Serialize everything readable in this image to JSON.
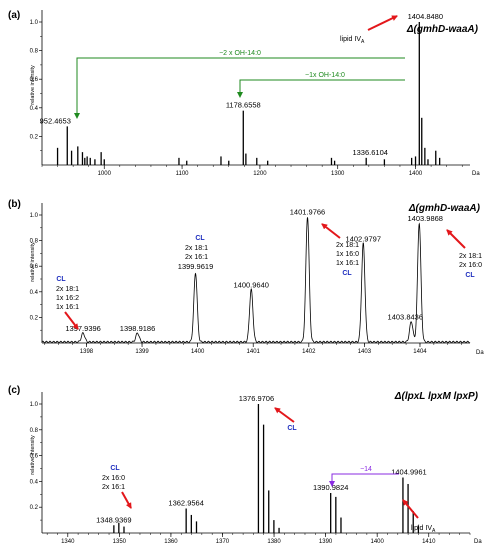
{
  "chart_data": [
    {
      "panel": "(a)",
      "type": "bar",
      "title": "Δ(gmhD-waaA)",
      "ylabel": "relative intensity",
      "xunit": "Da",
      "xlim": [
        920,
        1470
      ],
      "ylim": [
        0,
        1.0
      ],
      "xticks": [
        "1000",
        "1100",
        "1200",
        "1300",
        "1400"
      ],
      "yticks": [
        "0.2",
        "0.4",
        "0.6",
        "0.8",
        "1.0"
      ],
      "peaks": [
        {
          "x": 940,
          "y": 0.12
        },
        {
          "x": 952.4653,
          "y": 0.27,
          "label": "952.4653"
        },
        {
          "x": 958,
          "y": 0.1
        },
        {
          "x": 966,
          "y": 0.13
        },
        {
          "x": 972,
          "y": 0.09
        },
        {
          "x": 975,
          "y": 0.05
        },
        {
          "x": 978,
          "y": 0.06
        },
        {
          "x": 982,
          "y": 0.05
        },
        {
          "x": 988,
          "y": 0.04
        },
        {
          "x": 996,
          "y": 0.09
        },
        {
          "x": 1000,
          "y": 0.04
        },
        {
          "x": 1096,
          "y": 0.05
        },
        {
          "x": 1106,
          "y": 0.03
        },
        {
          "x": 1150,
          "y": 0.06
        },
        {
          "x": 1160,
          "y": 0.03
        },
        {
          "x": 1178.6558,
          "y": 0.38,
          "label": "1178.6558"
        },
        {
          "x": 1182,
          "y": 0.08
        },
        {
          "x": 1196,
          "y": 0.05
        },
        {
          "x": 1210,
          "y": 0.03
        },
        {
          "x": 1292,
          "y": 0.05
        },
        {
          "x": 1296,
          "y": 0.03
        },
        {
          "x": 1336.6104,
          "y": 0.05,
          "label": "1336.6104"
        },
        {
          "x": 1360,
          "y": 0.04
        },
        {
          "x": 1395,
          "y": 0.05
        },
        {
          "x": 1400,
          "y": 0.06
        },
        {
          "x": 1404.848,
          "y": 1.0,
          "label": "1404.8480"
        },
        {
          "x": 1408,
          "y": 0.33
        },
        {
          "x": 1412,
          "y": 0.12
        },
        {
          "x": 1416,
          "y": 0.04
        },
        {
          "x": 1426,
          "y": 0.1
        },
        {
          "x": 1431,
          "y": 0.05
        }
      ],
      "annotations": {
        "shift2": "−2 x OH-14:0",
        "shift1": "−1x OH-14:0",
        "lipid_main": "lipid IV",
        "lipid_sub": "A"
      }
    },
    {
      "panel": "(b)",
      "type": "line",
      "title": "Δ(gmhD-waaA)",
      "ylabel": "relative intensity",
      "xunit": "Da",
      "xlim": [
        1397.2,
        1404.9
      ],
      "ylim": [
        0,
        1.0
      ],
      "xticks": [
        "1398",
        "1399",
        "1400",
        "1401",
        "1402",
        "1403",
        "1404"
      ],
      "yticks": [
        "0.2",
        "0.4",
        "0.6",
        "0.8",
        "1.0"
      ],
      "peaks": [
        {
          "x": 1397.9396,
          "y": 0.07,
          "label": "1397.9396"
        },
        {
          "x": 1398.9186,
          "y": 0.07,
          "label": "1398.9186"
        },
        {
          "x": 1399.9619,
          "y": 0.54,
          "label": "1399.9619"
        },
        {
          "x": 1400.964,
          "y": 0.41,
          "label": "1400.9640"
        },
        {
          "x": 1401.9766,
          "y": 0.98,
          "label": "1401.9766"
        },
        {
          "x": 1402.9797,
          "y": 0.77,
          "label": "1402.9797"
        },
        {
          "x": 1403.8436,
          "y": 0.16,
          "label": "1403.8436"
        },
        {
          "x": 1403.9868,
          "y": 0.93,
          "label": "1403.9868"
        }
      ],
      "annotations": {
        "cl": "CL",
        "g1": [
          "2x 18:1",
          "1x 16:2",
          "1x 16:1"
        ],
        "g2": [
          "2x 18:1",
          "2x 16:1"
        ],
        "g3": [
          "2x 18:1",
          "1x 16:0",
          "1x 16:1"
        ],
        "g4": [
          "2x 18:1",
          "2x 16:0"
        ]
      }
    },
    {
      "panel": "(c)",
      "type": "bar",
      "title": "Δ(lpxL lpxM lpxP)",
      "ylabel": "relative intensity",
      "xunit": "Da",
      "xlim": [
        1335,
        1418
      ],
      "ylim": [
        0,
        1.0
      ],
      "xticks": [
        "1340",
        "1350",
        "1360",
        "1370",
        "1380",
        "1390",
        "1400",
        "1410"
      ],
      "yticks": [
        "0.2",
        "0.4",
        "0.6",
        "0.8",
        "1.0"
      ],
      "peaks": [
        {
          "x": 1348.9369,
          "y": 0.06,
          "label": "1348.9369"
        },
        {
          "x": 1349.9,
          "y": 0.08
        },
        {
          "x": 1350.9,
          "y": 0.05
        },
        {
          "x": 1362.9564,
          "y": 0.19,
          "label": "1362.9564"
        },
        {
          "x": 1363.96,
          "y": 0.14
        },
        {
          "x": 1364.96,
          "y": 0.09
        },
        {
          "x": 1376.9706,
          "y": 1.0,
          "label": "1376.9706"
        },
        {
          "x": 1377.97,
          "y": 0.84
        },
        {
          "x": 1378.97,
          "y": 0.33
        },
        {
          "x": 1379.97,
          "y": 0.1
        },
        {
          "x": 1380.97,
          "y": 0.04
        },
        {
          "x": 1390.9824,
          "y": 0.31,
          "label": "1390.9824"
        },
        {
          "x": 1391.98,
          "y": 0.28
        },
        {
          "x": 1392.98,
          "y": 0.12
        },
        {
          "x": 1404.9961,
          "y": 0.43,
          "label": "1404.9961"
        },
        {
          "x": 1405.99,
          "y": 0.38
        },
        {
          "x": 1406.99,
          "y": 0.17
        },
        {
          "x": 1407.99,
          "y": 0.06
        }
      ],
      "annotations": {
        "cl": "CL",
        "g1": [
          "2x 16:0",
          "2x 16:1"
        ],
        "shift": "−14",
        "lipid_main": "lipid IV",
        "lipid_sub": "A"
      }
    }
  ]
}
